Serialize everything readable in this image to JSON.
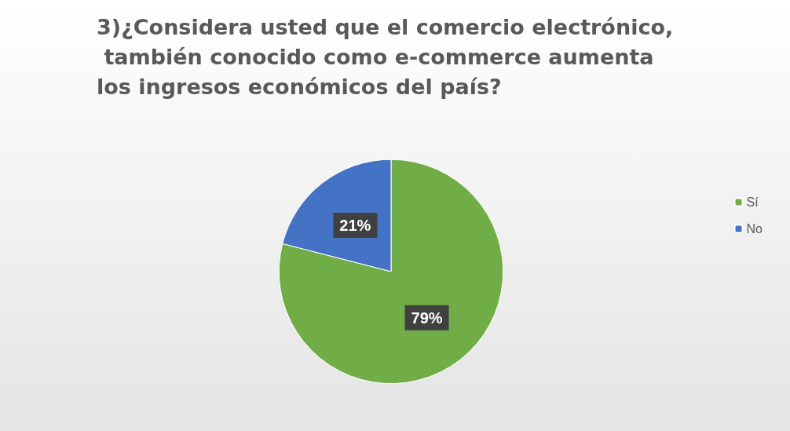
{
  "chart_data": {
    "type": "pie",
    "title": "3)¿Considera usted que el comercio electrónico, también conocido como e-commerce aumenta los ingresos económicos del país?",
    "categories": [
      "Sí",
      "No"
    ],
    "values": [
      79,
      21
    ],
    "colors": [
      "#70ad47",
      "#4472c4"
    ],
    "value_labels": [
      "79%",
      "21%"
    ],
    "legend": "right"
  }
}
